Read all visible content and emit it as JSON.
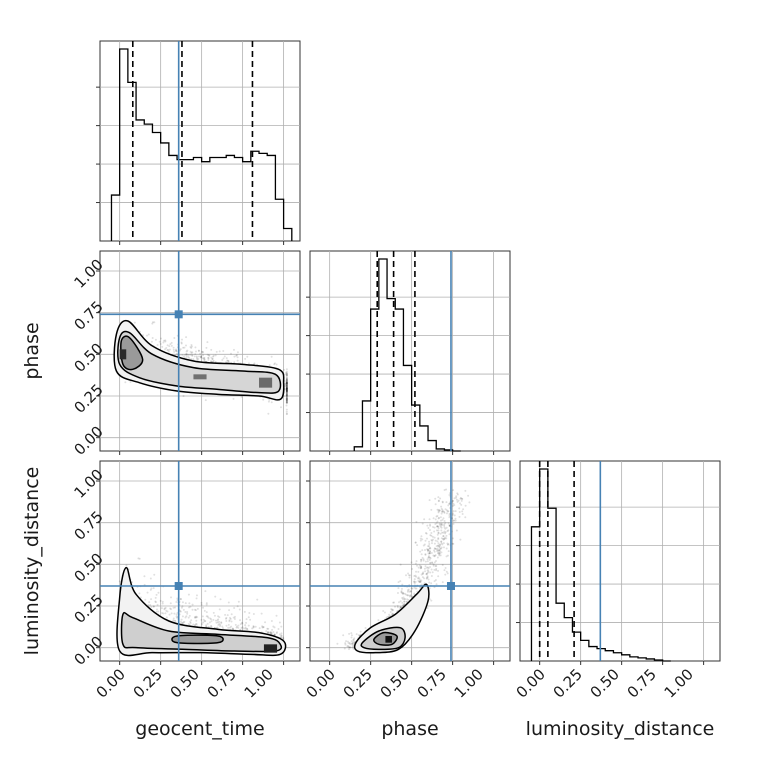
{
  "chart_data": {
    "type": "corner",
    "parameters": [
      "geocent_time",
      "phase",
      "luminosity_distance"
    ],
    "axis_ticks": [
      "0.00",
      "0.25",
      "0.50",
      "0.75",
      "1.00"
    ],
    "axis_tick_values": [
      0,
      0.25,
      0.5,
      0.75,
      1.0
    ],
    "xlim": [
      -0.12,
      1.1
    ],
    "ylim": [
      -0.08,
      1.12
    ],
    "grid": true,
    "truths": {
      "geocent_time": 0.36,
      "phase": 0.74,
      "luminosity_distance": 0.37
    },
    "truth_color": "#4682b4",
    "quantiles": {
      "geocent_time": [
        0.08,
        0.38,
        0.81
      ],
      "phase": [
        0.29,
        0.39,
        0.52
      ],
      "luminosity_distance": [
        0.0,
        0.05,
        0.21
      ]
    },
    "histograms": {
      "geocent_time": {
        "bin_edges": [
          -0.05,
          0.0,
          0.05,
          0.1,
          0.15,
          0.2,
          0.25,
          0.3,
          0.35,
          0.4,
          0.45,
          0.5,
          0.55,
          0.6,
          0.65,
          0.7,
          0.75,
          0.8,
          0.85,
          0.9,
          0.95,
          1.0,
          1.05
        ],
        "counts": [
          0.22,
          0.92,
          0.76,
          0.58,
          0.56,
          0.52,
          0.47,
          0.41,
          0.39,
          0.39,
          0.4,
          0.38,
          0.4,
          0.4,
          0.41,
          0.4,
          0.38,
          0.43,
          0.42,
          0.41,
          0.2,
          0.06
        ]
      },
      "phase": {
        "bin_edges": [
          0.15,
          0.2,
          0.25,
          0.3,
          0.35,
          0.4,
          0.45,
          0.5,
          0.55,
          0.6,
          0.65,
          0.7,
          0.75,
          0.8
        ],
        "counts": [
          0.02,
          0.24,
          0.68,
          0.92,
          0.73,
          0.68,
          0.41,
          0.22,
          0.12,
          0.05,
          0.01,
          0.005,
          0.0
        ]
      },
      "luminosity_distance": {
        "bin_edges": [
          -0.05,
          0.0,
          0.05,
          0.1,
          0.15,
          0.2,
          0.25,
          0.3,
          0.35,
          0.4,
          0.45,
          0.5,
          0.55,
          0.6,
          0.65,
          0.7,
          0.75,
          0.8
        ],
        "counts": [
          0.65,
          0.93,
          0.74,
          0.28,
          0.21,
          0.14,
          0.1,
          0.07,
          0.06,
          0.05,
          0.04,
          0.03,
          0.02,
          0.015,
          0.01,
          0.005,
          0.0
        ]
      }
    },
    "density_2d": {
      "phase_vs_geocent_time": {
        "peak": [
          0.02,
          0.52
        ],
        "ridge": [
          [
            0.0,
            0.55
          ],
          [
            0.2,
            0.45
          ],
          [
            0.4,
            0.38
          ],
          [
            0.6,
            0.36
          ],
          [
            0.8,
            0.34
          ],
          [
            0.97,
            0.27
          ]
        ]
      },
      "luminosity_distance_vs_geocent_time": {
        "peak": [
          0.93,
          0.0
        ],
        "ridge": [
          [
            0.0,
            0.25
          ],
          [
            0.2,
            0.12
          ],
          [
            0.4,
            0.08
          ],
          [
            0.6,
            0.06
          ],
          [
            0.8,
            0.04
          ],
          [
            0.97,
            0.0
          ]
        ]
      },
      "luminosity_distance_vs_phase": {
        "peak": [
          0.35,
          0.05
        ],
        "ridge": [
          [
            0.15,
            0.0
          ],
          [
            0.3,
            0.05
          ],
          [
            0.45,
            0.15
          ],
          [
            0.6,
            0.35
          ],
          [
            0.75,
            0.75
          ]
        ]
      }
    }
  }
}
